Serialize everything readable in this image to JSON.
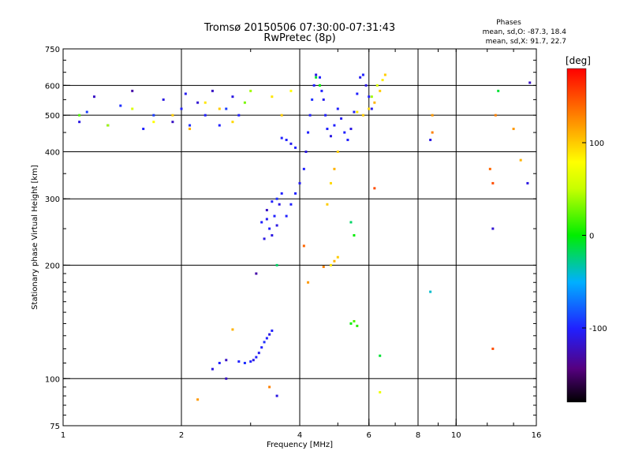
{
  "chart_data": {
    "type": "scatter",
    "title": "Tromsø 20150506 07:30:00-07:31:43",
    "subtitle": "RwPretec (8p)",
    "stats": {
      "heading": "Phases",
      "line_o": "mean, sd,O: -87.3, 18.4",
      "line_x": "mean, sd,X: 91.7, 22.7"
    },
    "xlabel": "Frequency [MHz]",
    "ylabel": "Stationary phase Virtual Height [km]",
    "x_scale": "log",
    "y_scale": "log",
    "xlim": [
      1,
      16
    ],
    "ylim": [
      75,
      750
    ],
    "x_ticks": [
      1,
      2,
      4,
      6,
      8,
      10,
      16
    ],
    "x_tick_labels": [
      "1",
      "2",
      "4",
      "6",
      "8",
      "10",
      "16"
    ],
    "x_gridlines": [
      2,
      4,
      6,
      8,
      10
    ],
    "y_ticks": [
      75,
      100,
      200,
      300,
      400,
      500,
      600,
      750
    ],
    "y_tick_labels": [
      "75",
      "100",
      "200",
      "300",
      "400",
      "500",
      "600",
      "750"
    ],
    "y_gridlines": [
      100,
      200,
      300,
      400,
      500,
      600
    ],
    "grid": true,
    "colorbar": {
      "label": "[deg]",
      "range": [
        -180,
        180
      ],
      "ticks": [
        -100,
        0,
        100
      ],
      "tick_labels": [
        "-100",
        "0",
        "100"
      ],
      "colormap": "rainbow: black-purple-blue-cyan-green-yellow-orange-red"
    },
    "series": [
      {
        "points": [
          [
            1.1,
            480,
            -110
          ],
          [
            1.15,
            510,
            -90
          ],
          [
            1.2,
            560,
            -120
          ],
          [
            1.3,
            470,
            -100
          ],
          [
            1.4,
            530,
            -95
          ],
          [
            1.5,
            580,
            -130
          ],
          [
            1.6,
            460,
            -100
          ],
          [
            1.7,
            500,
            -90
          ],
          [
            1.8,
            550,
            -110
          ],
          [
            1.9,
            480,
            -120
          ],
          [
            2.0,
            520,
            -100
          ],
          [
            2.05,
            570,
            -105
          ],
          [
            2.1,
            470,
            -95
          ],
          [
            2.2,
            540,
            -115
          ],
          [
            2.3,
            500,
            -100
          ],
          [
            2.4,
            580,
            -120
          ],
          [
            2.5,
            470,
            -100
          ],
          [
            2.6,
            520,
            -90
          ],
          [
            2.7,
            560,
            -110
          ],
          [
            2.8,
            500,
            -100
          ],
          [
            2.4,
            106,
            -110
          ],
          [
            2.5,
            110,
            -100
          ],
          [
            2.6,
            112,
            -120
          ],
          [
            2.8,
            111,
            -100
          ],
          [
            2.9,
            110,
            -95
          ],
          [
            3.0,
            111,
            -100
          ],
          [
            3.05,
            112,
            -110
          ],
          [
            3.1,
            114,
            -100
          ],
          [
            3.15,
            117,
            -105
          ],
          [
            3.2,
            121,
            -100
          ],
          [
            3.25,
            125,
            -95
          ],
          [
            3.3,
            128,
            -100
          ],
          [
            3.35,
            131,
            -110
          ],
          [
            3.4,
            134,
            -100
          ],
          [
            3.25,
            235,
            -110
          ],
          [
            3.2,
            260,
            -100
          ],
          [
            3.3,
            280,
            -120
          ],
          [
            3.35,
            250,
            -100
          ],
          [
            3.4,
            240,
            -110
          ],
          [
            3.45,
            270,
            -100
          ],
          [
            3.5,
            300,
            -95
          ],
          [
            3.55,
            290,
            -110
          ],
          [
            3.6,
            310,
            -100
          ],
          [
            3.4,
            295,
            -100
          ],
          [
            3.3,
            265,
            -105
          ],
          [
            3.5,
            255,
            -110
          ],
          [
            3.7,
            270,
            -100
          ],
          [
            3.8,
            290,
            -100
          ],
          [
            3.9,
            310,
            -100
          ],
          [
            4.0,
            330,
            -105
          ],
          [
            4.1,
            360,
            -100
          ],
          [
            4.15,
            400,
            -110
          ],
          [
            4.2,
            450,
            -100
          ],
          [
            4.25,
            500,
            -100
          ],
          [
            4.3,
            550,
            -95
          ],
          [
            4.35,
            600,
            -100
          ],
          [
            4.4,
            640,
            -110
          ],
          [
            4.5,
            630,
            -100
          ],
          [
            4.55,
            580,
            -100
          ],
          [
            4.6,
            550,
            -105
          ],
          [
            3.6,
            435,
            -100
          ],
          [
            3.7,
            430,
            -100
          ],
          [
            3.8,
            420,
            -105
          ],
          [
            3.9,
            410,
            -100
          ],
          [
            4.65,
            500,
            -100
          ],
          [
            4.7,
            460,
            -100
          ],
          [
            4.8,
            440,
            -110
          ],
          [
            4.9,
            470,
            -100
          ],
          [
            5.0,
            520,
            -100
          ],
          [
            5.1,
            490,
            -105
          ],
          [
            5.2,
            450,
            -100
          ],
          [
            5.3,
            430,
            -100
          ],
          [
            5.4,
            460,
            -110
          ],
          [
            5.5,
            510,
            -100
          ],
          [
            5.6,
            570,
            -100
          ],
          [
            5.7,
            630,
            -105
          ],
          [
            5.8,
            640,
            -100
          ],
          [
            5.9,
            600,
            -110
          ],
          [
            6.0,
            560,
            -100
          ],
          [
            6.1,
            520,
            -105
          ],
          [
            8.6,
            430,
            -110
          ],
          [
            12.4,
            250,
            -115
          ],
          [
            15.2,
            330,
            -110
          ],
          [
            15.4,
            610,
            -120
          ],
          [
            3.1,
            190,
            -130
          ],
          [
            3.5,
            90,
            -110
          ],
          [
            2.6,
            100,
            -120
          ]
        ]
      },
      {
        "points": [
          [
            1.1,
            500,
            20
          ],
          [
            1.3,
            470,
            40
          ],
          [
            1.5,
            520,
            60
          ],
          [
            1.7,
            480,
            80
          ],
          [
            1.9,
            500,
            100
          ],
          [
            2.1,
            460,
            110
          ],
          [
            2.3,
            540,
            90
          ],
          [
            2.5,
            520,
            100
          ],
          [
            2.7,
            480,
            95
          ],
          [
            3.4,
            560,
            90
          ],
          [
            3.6,
            500,
            100
          ],
          [
            3.8,
            580,
            80
          ],
          [
            5.6,
            510,
            90
          ],
          [
            5.8,
            500,
            100
          ],
          [
            6.0,
            520,
            95
          ],
          [
            6.2,
            540,
            110
          ],
          [
            6.4,
            580,
            100
          ],
          [
            6.5,
            620,
            85
          ],
          [
            6.6,
            640,
            100
          ],
          [
            6.3,
            600,
            60
          ],
          [
            6.1,
            560,
            40
          ],
          [
            4.4,
            630,
            -10
          ],
          [
            4.5,
            600,
            0
          ],
          [
            4.7,
            290,
            100
          ],
          [
            4.8,
            330,
            95
          ],
          [
            4.9,
            360,
            110
          ],
          [
            5.0,
            400,
            100
          ],
          [
            4.9,
            205,
            110
          ],
          [
            5.0,
            210,
            100
          ],
          [
            4.8,
            200,
            90
          ],
          [
            4.6,
            198,
            130
          ],
          [
            4.1,
            225,
            140
          ],
          [
            4.2,
            180,
            120
          ],
          [
            5.4,
            260,
            -20
          ],
          [
            5.5,
            240,
            0
          ],
          [
            5.4,
            140,
            0
          ],
          [
            5.5,
            142,
            20
          ],
          [
            5.6,
            138,
            10
          ],
          [
            2.7,
            135,
            110
          ],
          [
            3.35,
            95,
            130
          ],
          [
            2.2,
            88,
            120
          ],
          [
            6.4,
            92,
            70
          ],
          [
            6.2,
            320,
            150
          ],
          [
            8.7,
            450,
            130
          ],
          [
            8.7,
            500,
            120
          ],
          [
            8.6,
            170,
            -40
          ],
          [
            12.2,
            360,
            140
          ],
          [
            12.4,
            330,
            150
          ],
          [
            12.4,
            120,
            150
          ],
          [
            12.6,
            500,
            130
          ],
          [
            14.0,
            460,
            120
          ],
          [
            14.6,
            380,
            110
          ],
          [
            12.8,
            580,
            -10
          ],
          [
            6.4,
            115,
            -10
          ],
          [
            3.5,
            200,
            -20
          ],
          [
            3.0,
            580,
            40
          ],
          [
            2.9,
            540,
            30
          ]
        ]
      }
    ]
  }
}
